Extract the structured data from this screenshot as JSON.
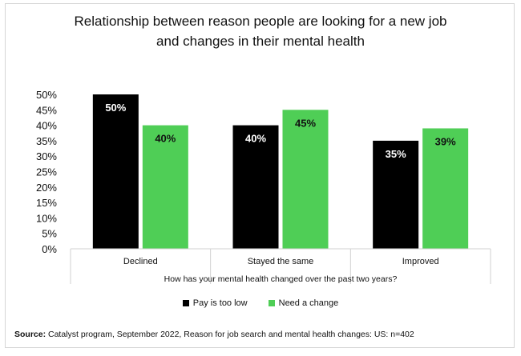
{
  "title_lines": [
    "Relationship between reason people are looking for a new job",
    "and changes in their mental health"
  ],
  "source": {
    "label": "Source:",
    "text": " Catalyst program, September 2022, Reason for job search and mental health changes: US: n=402"
  },
  "colors": {
    "pay": "#000000",
    "change": "#4fce56"
  },
  "chart_data": {
    "type": "bar",
    "title": "Relationship between reason people are looking for a new job and changes in their mental health",
    "categories": [
      "Declined",
      "Stayed the same",
      "Improved"
    ],
    "series": [
      {
        "name": "Pay is too low",
        "values": [
          50,
          40,
          35
        ],
        "labels": [
          "50%",
          "40%",
          "35%"
        ],
        "color": "#000000"
      },
      {
        "name": "Need a change",
        "values": [
          40,
          45,
          39
        ],
        "labels": [
          "40%",
          "45%",
          "39%"
        ],
        "color": "#4fce56"
      }
    ],
    "xlabel": "How has your mental health changed over the past two years?",
    "ylabel": "",
    "ylim": [
      0,
      50
    ],
    "yticks": [
      "0%",
      "5%",
      "10%",
      "15%",
      "20%",
      "25%",
      "30%",
      "35%",
      "40%",
      "45%",
      "50%"
    ],
    "ytick_values": [
      0,
      5,
      10,
      15,
      20,
      25,
      30,
      35,
      40,
      45,
      50
    ],
    "legend_position": "bottom",
    "grid": false
  }
}
